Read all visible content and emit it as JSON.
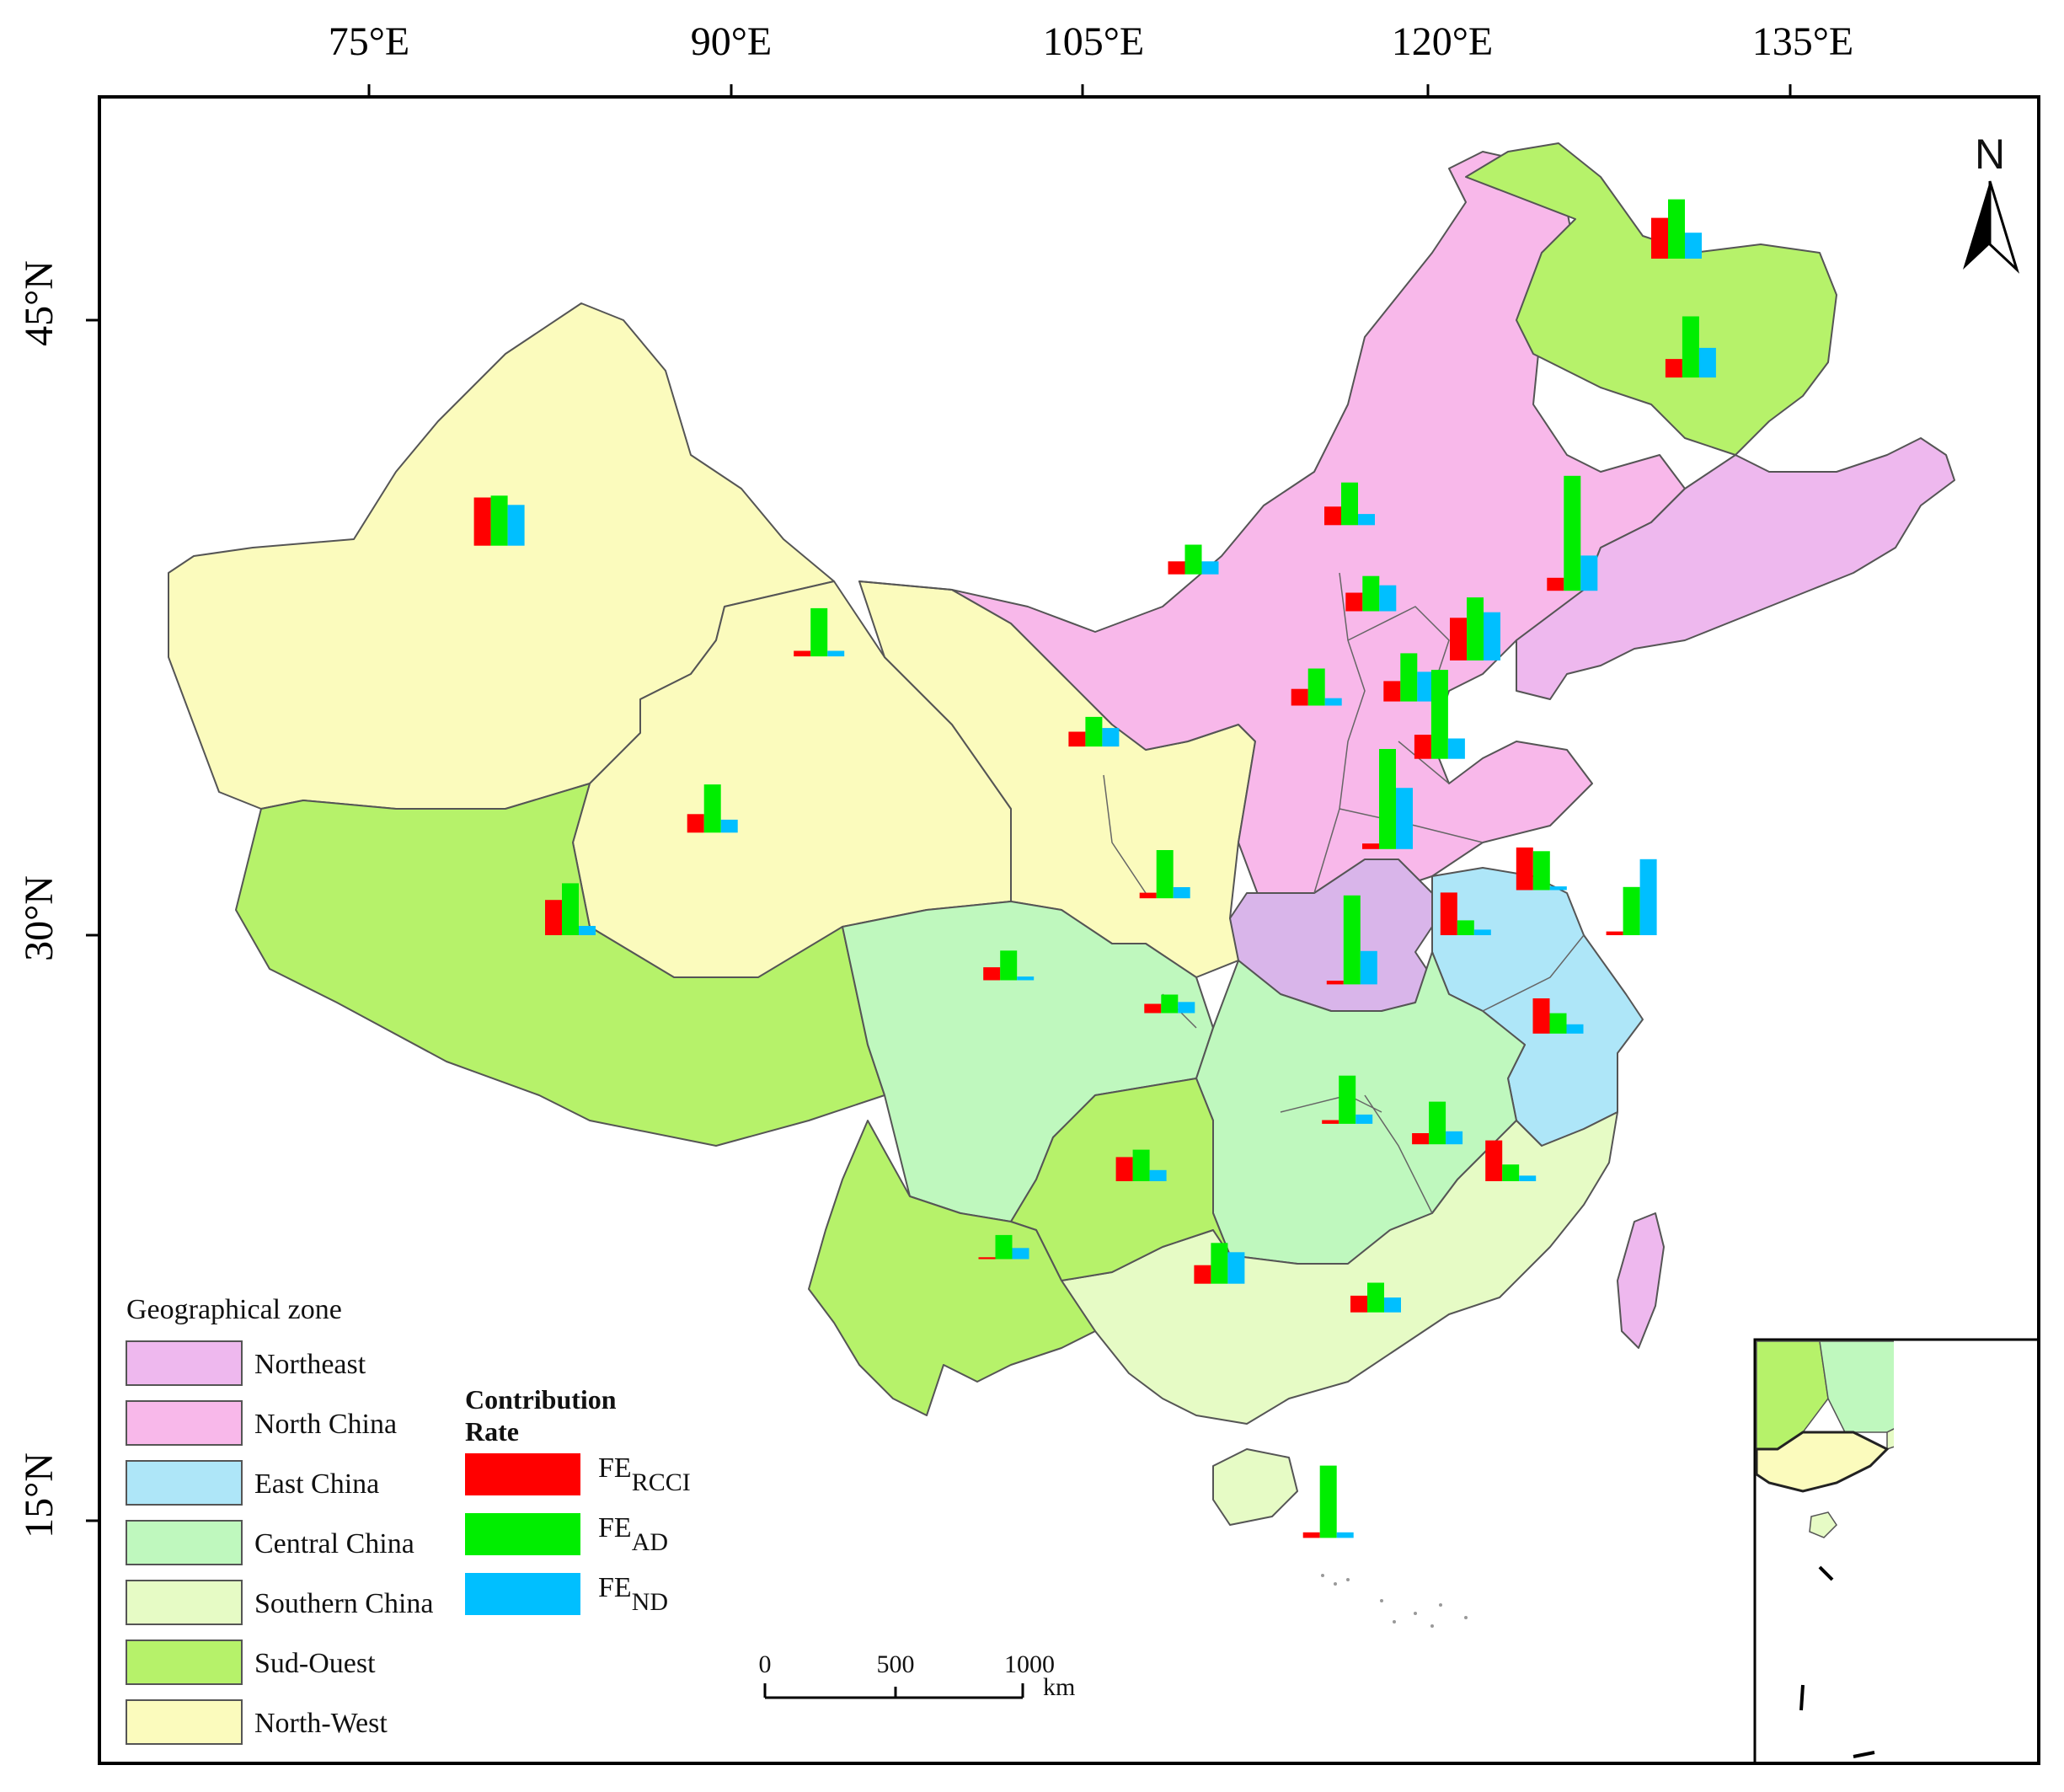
{
  "map": {
    "lon_labels": [
      "75°E",
      "90°E",
      "105°E",
      "120°E",
      "135°E"
    ],
    "lat_labels": [
      "45°N",
      "30°N",
      "15°N"
    ],
    "north_label": "N"
  },
  "legend": {
    "title": "Geographical zone",
    "zones": [
      {
        "name": "Northeast",
        "color": "#eeb8ee"
      },
      {
        "name": "North China",
        "color": "#f8b8ea"
      },
      {
        "name": "East China",
        "color": "#aee6f8"
      },
      {
        "name": "Central China",
        "color": "#bff8be"
      },
      {
        "name": "Southern China",
        "color": "#e6fbc5"
      },
      {
        "name": "Sud-Ouest",
        "color": "#b6f26a"
      },
      {
        "name": "North-West",
        "color": "#fbfbbd"
      }
    ]
  },
  "contribution": {
    "title_line1": "Contribution",
    "title_line2": "Rate",
    "items": [
      {
        "label": "FE",
        "sub": "RCCI",
        "color": "#ff0000"
      },
      {
        "label": "FE",
        "sub": "AD",
        "color": "#00ee00"
      },
      {
        "label": "FE",
        "sub": "ND",
        "color": "#00bfff"
      }
    ]
  },
  "scalebar": {
    "ticks": [
      "0",
      "500",
      "1000"
    ],
    "unit": "km"
  },
  "chart_data": {
    "type": "bar",
    "note_values": "relative bar heights per province (unitless, estimated)",
    "series": [
      {
        "name": "FE RCCI",
        "color": "#ff0000"
      },
      {
        "name": "FE AD",
        "color": "#00ee00"
      },
      {
        "name": "FE ND",
        "color": "#00bfff"
      }
    ],
    "locations": [
      {
        "lon": 80.5,
        "lat": 39.5,
        "values": [
          26,
          27,
          22
        ]
      },
      {
        "lon": 94.0,
        "lat": 36.8,
        "values": [
          3,
          26,
          3
        ]
      },
      {
        "lon": 89.5,
        "lat": 32.5,
        "values": [
          10,
          26,
          7
        ]
      },
      {
        "lon": 83.5,
        "lat": 30.0,
        "values": [
          19,
          28,
          5
        ]
      },
      {
        "lon": 109.8,
        "lat": 38.8,
        "values": [
          7,
          16,
          7
        ]
      },
      {
        "lon": 105.6,
        "lat": 34.6,
        "values": [
          8,
          16,
          10
        ]
      },
      {
        "lon": 108.6,
        "lat": 30.9,
        "values": [
          3,
          26,
          6
        ]
      },
      {
        "lon": 116.4,
        "lat": 40.0,
        "values": [
          10,
          23,
          6
        ]
      },
      {
        "lon": 115.0,
        "lat": 35.6,
        "values": [
          9,
          20,
          4
        ]
      },
      {
        "lon": 117.3,
        "lat": 37.9,
        "values": [
          10,
          19,
          14
        ]
      },
      {
        "lon": 118.9,
        "lat": 35.7,
        "values": [
          11,
          26,
          16
        ]
      },
      {
        "lon": 120.2,
        "lat": 34.3,
        "values": [
          13,
          48,
          11
        ]
      },
      {
        "lon": 121.7,
        "lat": 36.7,
        "values": [
          23,
          34,
          26
        ]
      },
      {
        "lon": 118.0,
        "lat": 32.1,
        "values": [
          3,
          54,
          33
        ]
      },
      {
        "lon": 125.8,
        "lat": 38.4,
        "values": [
          7,
          62,
          19
        ]
      },
      {
        "lon": 130.8,
        "lat": 43.6,
        "values": [
          10,
          33,
          16
        ]
      },
      {
        "lon": 130.2,
        "lat": 46.5,
        "values": [
          22,
          32,
          14
        ]
      },
      {
        "lon": 124.5,
        "lat": 31.1,
        "values": [
          23,
          21,
          2
        ]
      },
      {
        "lon": 121.3,
        "lat": 30.0,
        "values": [
          23,
          8,
          3
        ]
      },
      {
        "lon": 128.3,
        "lat": 30.0,
        "values": [
          2,
          26,
          41
        ]
      },
      {
        "lon": 125.2,
        "lat": 27.6,
        "values": [
          19,
          11,
          5
        ]
      },
      {
        "lon": 116.5,
        "lat": 28.8,
        "values": [
          2,
          48,
          18
        ]
      },
      {
        "lon": 108.8,
        "lat": 28.1,
        "values": [
          5,
          10,
          6
        ]
      },
      {
        "lon": 102.0,
        "lat": 28.9,
        "values": [
          7,
          16,
          2
        ]
      },
      {
        "lon": 116.3,
        "lat": 25.4,
        "values": [
          2,
          26,
          5
        ]
      },
      {
        "lon": 120.1,
        "lat": 24.9,
        "values": [
          6,
          23,
          7
        ]
      },
      {
        "lon": 123.2,
        "lat": 24.0,
        "values": [
          22,
          9,
          3
        ]
      },
      {
        "lon": 107.6,
        "lat": 24.0,
        "values": [
          13,
          17,
          6
        ]
      },
      {
        "lon": 101.8,
        "lat": 22.1,
        "values": [
          1,
          13,
          6
        ]
      },
      {
        "lon": 110.9,
        "lat": 21.5,
        "values": [
          10,
          22,
          17
        ]
      },
      {
        "lon": 117.5,
        "lat": 20.8,
        "values": [
          9,
          16,
          8
        ]
      },
      {
        "lon": 115.5,
        "lat": 15.3,
        "values": [
          3,
          39,
          3
        ]
      }
    ]
  }
}
